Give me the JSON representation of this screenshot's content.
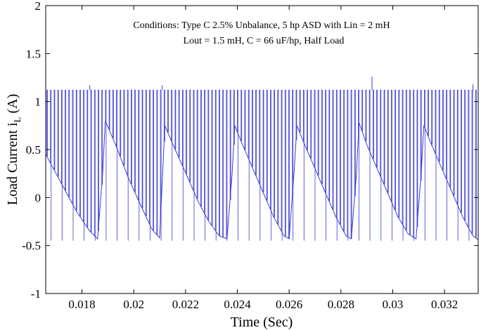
{
  "chart_data": {
    "type": "line",
    "xlabel": "Time (Sec)",
    "ylabel_main": "Load Current i",
    "ylabel_sub": "L",
    "ylabel_unit": " (A)",
    "xlim": [
      0.0166,
      0.0333
    ],
    "ylim": [
      -1,
      2
    ],
    "x_ticks": [
      0.018,
      0.02,
      0.022,
      0.024,
      0.026,
      0.028,
      0.03,
      0.032
    ],
    "x_tick_labels": [
      "0.018",
      "0.02",
      "0.022",
      "0.024",
      "0.026",
      "0.028",
      "0.03",
      "0.032"
    ],
    "y_ticks": [
      -1,
      -0.5,
      0,
      0.5,
      1,
      1.5,
      2
    ],
    "y_tick_labels": [
      "-1",
      "-0.5",
      "0",
      "0.5",
      "1",
      "1.5",
      "2"
    ],
    "annotation_line1": "Conditions: Type C 2.5% Unbalance, 5 hp ASD with Lin = 2 mH",
    "annotation_line2": "Lout = 1.5 mH, C = 66 uF/hp, Half Load",
    "line_color": "#3b3bd6",
    "grid": false,
    "series": [
      {
        "switching_high": 1.12,
        "switching_low": -0.45,
        "baseline": [
          [
            0.0166,
            0.45
          ],
          [
            0.0169,
            0.3
          ],
          [
            0.0173,
            0.1
          ],
          [
            0.0178,
            -0.15
          ],
          [
            0.0183,
            -0.35
          ],
          [
            0.0186,
            -0.43
          ],
          [
            0.0188,
            0.25
          ],
          [
            0.0189,
            0.8
          ],
          [
            0.0193,
            0.55
          ],
          [
            0.0198,
            0.2
          ],
          [
            0.0203,
            -0.1
          ],
          [
            0.0207,
            -0.33
          ],
          [
            0.021,
            -0.42
          ],
          [
            0.0212,
            0.75
          ],
          [
            0.0216,
            0.5
          ],
          [
            0.0221,
            0.2
          ],
          [
            0.0225,
            -0.05
          ],
          [
            0.0229,
            -0.25
          ],
          [
            0.0233,
            -0.4
          ],
          [
            0.0236,
            -0.43
          ],
          [
            0.0238,
            0.25
          ],
          [
            0.0239,
            0.75
          ],
          [
            0.0242,
            0.55
          ],
          [
            0.0246,
            0.3
          ],
          [
            0.025,
            0.05
          ],
          [
            0.0254,
            -0.2
          ],
          [
            0.0258,
            -0.4
          ],
          [
            0.026,
            -0.43
          ],
          [
            0.0262,
            0.3
          ],
          [
            0.0263,
            0.75
          ],
          [
            0.0266,
            0.55
          ],
          [
            0.027,
            0.3
          ],
          [
            0.0274,
            0.05
          ],
          [
            0.0278,
            -0.2
          ],
          [
            0.0282,
            -0.4
          ],
          [
            0.0284,
            -0.43
          ],
          [
            0.0286,
            0.25
          ],
          [
            0.0287,
            0.78
          ],
          [
            0.029,
            0.55
          ],
          [
            0.0294,
            0.3
          ],
          [
            0.0298,
            0.05
          ],
          [
            0.0302,
            -0.2
          ],
          [
            0.0306,
            -0.38
          ],
          [
            0.0309,
            -0.43
          ],
          [
            0.0311,
            0.25
          ],
          [
            0.0312,
            0.75
          ],
          [
            0.0315,
            0.55
          ],
          [
            0.0319,
            0.3
          ],
          [
            0.0323,
            0.05
          ],
          [
            0.0327,
            -0.2
          ],
          [
            0.0331,
            -0.4
          ],
          [
            0.0333,
            -0.44
          ]
        ],
        "spikes": [
          [
            0.0183,
            1.17
          ],
          [
            0.0211,
            1.17
          ],
          [
            0.0292,
            1.26
          ],
          [
            0.0331,
            1.18
          ]
        ]
      }
    ]
  }
}
